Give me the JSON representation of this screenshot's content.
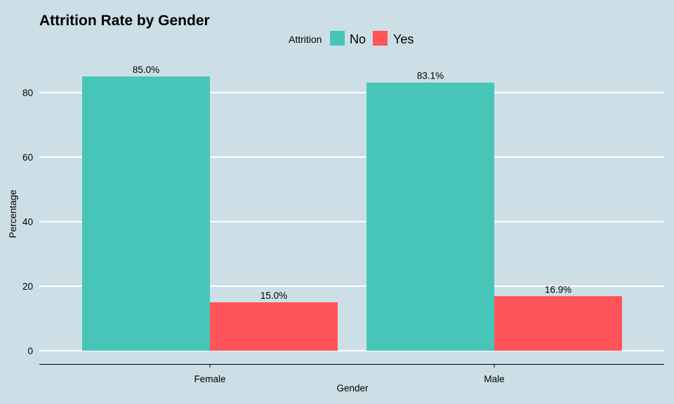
{
  "chart_data": {
    "type": "bar",
    "title": "Attrition Rate by Gender",
    "xlabel": "Gender",
    "ylabel": "Percentage",
    "categories": [
      "Female",
      "Male"
    ],
    "series": [
      {
        "name": "No",
        "values": [
          85.0,
          83.1
        ],
        "labels": [
          "85.0%",
          "83.1%"
        ],
        "color": "#46c5b8"
      },
      {
        "name": "Yes",
        "values": [
          15.0,
          16.9
        ],
        "labels": [
          "15.0%",
          "16.9%"
        ],
        "color": "#ff5459"
      }
    ],
    "ylim": [
      0,
      90
    ],
    "yticks": [
      0,
      20,
      40,
      60,
      80
    ],
    "legend": {
      "title": "Attrition",
      "position": "top"
    },
    "grid": true,
    "background_color": "#cddfe6"
  }
}
